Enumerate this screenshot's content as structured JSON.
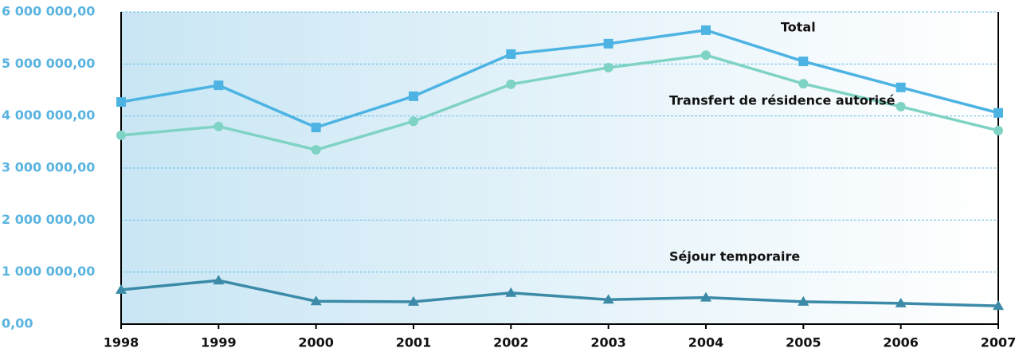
{
  "chart_data": {
    "type": "line",
    "x": [
      1998,
      1999,
      2000,
      2001,
      2002,
      2003,
      2004,
      2005,
      2006,
      2007
    ],
    "xlim": [
      1998,
      2007
    ],
    "xticks": [
      1998,
      1999,
      2000,
      2001,
      2002,
      2003,
      2004,
      2005,
      2006,
      2007
    ],
    "ylim": [
      0,
      6000000
    ],
    "yticks": [
      {
        "value": 0,
        "label": "0,00"
      },
      {
        "value": 1000000,
        "label": "1 000 000,00"
      },
      {
        "value": 2000000,
        "label": "2 000 000,00"
      },
      {
        "value": 3000000,
        "label": "3 000 000,00"
      },
      {
        "value": 4000000,
        "label": "4 000 000,00"
      },
      {
        "value": 5000000,
        "label": "5 000 000,00"
      },
      {
        "value": 6000000,
        "label": "6 000 000,00"
      }
    ],
    "grid": true,
    "series": [
      {
        "name": "Total",
        "color": "#4cb3e3",
        "marker": "square",
        "values": [
          4270000,
          4590000,
          3780000,
          4380000,
          5190000,
          5390000,
          5650000,
          5050000,
          4550000,
          4060000
        ]
      },
      {
        "name": "Transfert de résidence autorisé",
        "color": "#7fd3c4",
        "marker": "circle",
        "values": [
          3630000,
          3800000,
          3350000,
          3900000,
          4610000,
          4930000,
          5170000,
          4620000,
          4180000,
          3720000
        ]
      },
      {
        "name": "Séjour temporaire",
        "color": "#3a8aa8",
        "marker": "triangle",
        "values": [
          660000,
          840000,
          440000,
          430000,
          600000,
          470000,
          510000,
          430000,
          400000,
          350000
        ]
      }
    ]
  }
}
